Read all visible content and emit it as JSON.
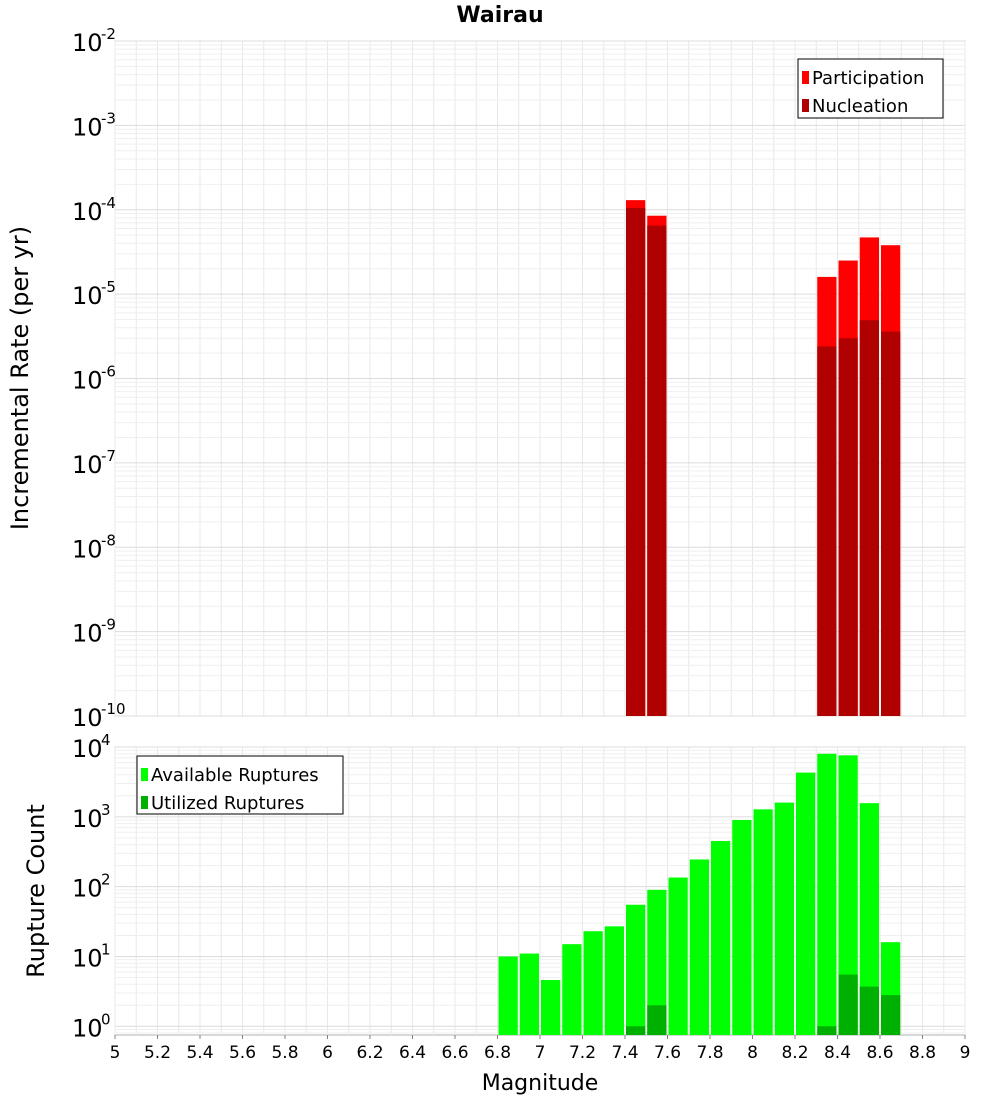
{
  "chart_data": [
    {
      "type": "bar",
      "title": "Wairau",
      "xlabel": "",
      "ylabel": "Incremental Rate (per yr)",
      "yscale": "log",
      "ylim": [
        1e-10,
        0.01
      ],
      "xlim": [
        5,
        9
      ],
      "bin_width": 0.1,
      "legend_position": "top-right",
      "y_tick_exponents": [
        "-2",
        "-3",
        "-4",
        "-5",
        "-6",
        "-7",
        "-8",
        "-9",
        "-10"
      ],
      "series": [
        {
          "name": "Participation",
          "color": "#ff0000",
          "x": [
            7.45,
            7.55,
            8.35,
            8.45,
            8.55,
            8.65
          ],
          "values": [
            0.00013,
            8.5e-05,
            1.6e-05,
            2.5e-05,
            4.7e-05,
            3.8e-05
          ]
        },
        {
          "name": "Nucleation",
          "color": "#b00000",
          "x": [
            7.45,
            7.55,
            8.35,
            8.45,
            8.55,
            8.65
          ],
          "values": [
            0.000105,
            6.5e-05,
            2.4e-06,
            3e-06,
            4.9e-06,
            3.6e-06
          ]
        }
      ]
    },
    {
      "type": "bar",
      "title": "",
      "xlabel": "Magnitude",
      "ylabel": "Rupture Count",
      "yscale": "log",
      "ylim": [
        0.75,
        10000
      ],
      "xlim": [
        5,
        9
      ],
      "bin_width": 0.1,
      "legend_position": "top-left",
      "x_ticks": [
        "5",
        "5.2",
        "5.4",
        "5.6",
        "5.8",
        "6",
        "6.2",
        "6.4",
        "6.6",
        "6.8",
        "7",
        "7.2",
        "7.4",
        "7.6",
        "7.8",
        "8",
        "8.2",
        "8.4",
        "8.6",
        "8.8",
        "9"
      ],
      "y_tick_exponents": [
        "4",
        "3",
        "2",
        "1",
        "0"
      ],
      "series": [
        {
          "name": "Available Ruptures",
          "color": "#00ff00",
          "x": [
            6.85,
            6.95,
            7.05,
            7.15,
            7.25,
            7.35,
            7.45,
            7.55,
            7.65,
            7.75,
            7.85,
            7.95,
            8.05,
            8.15,
            8.25,
            8.35,
            8.45,
            8.55,
            8.65
          ],
          "values": [
            10,
            11,
            4.6,
            15,
            23,
            27,
            55,
            90,
            135,
            245,
            450,
            900,
            1280,
            1600,
            4300,
            8000,
            7600,
            1570,
            16
          ]
        },
        {
          "name": "Utilized Ruptures",
          "color": "#00b000",
          "x": [
            7.45,
            7.55,
            8.35,
            8.45,
            8.55,
            8.65
          ],
          "values": [
            1,
            2,
            1,
            5.5,
            3.7,
            2.8
          ]
        }
      ]
    }
  ]
}
